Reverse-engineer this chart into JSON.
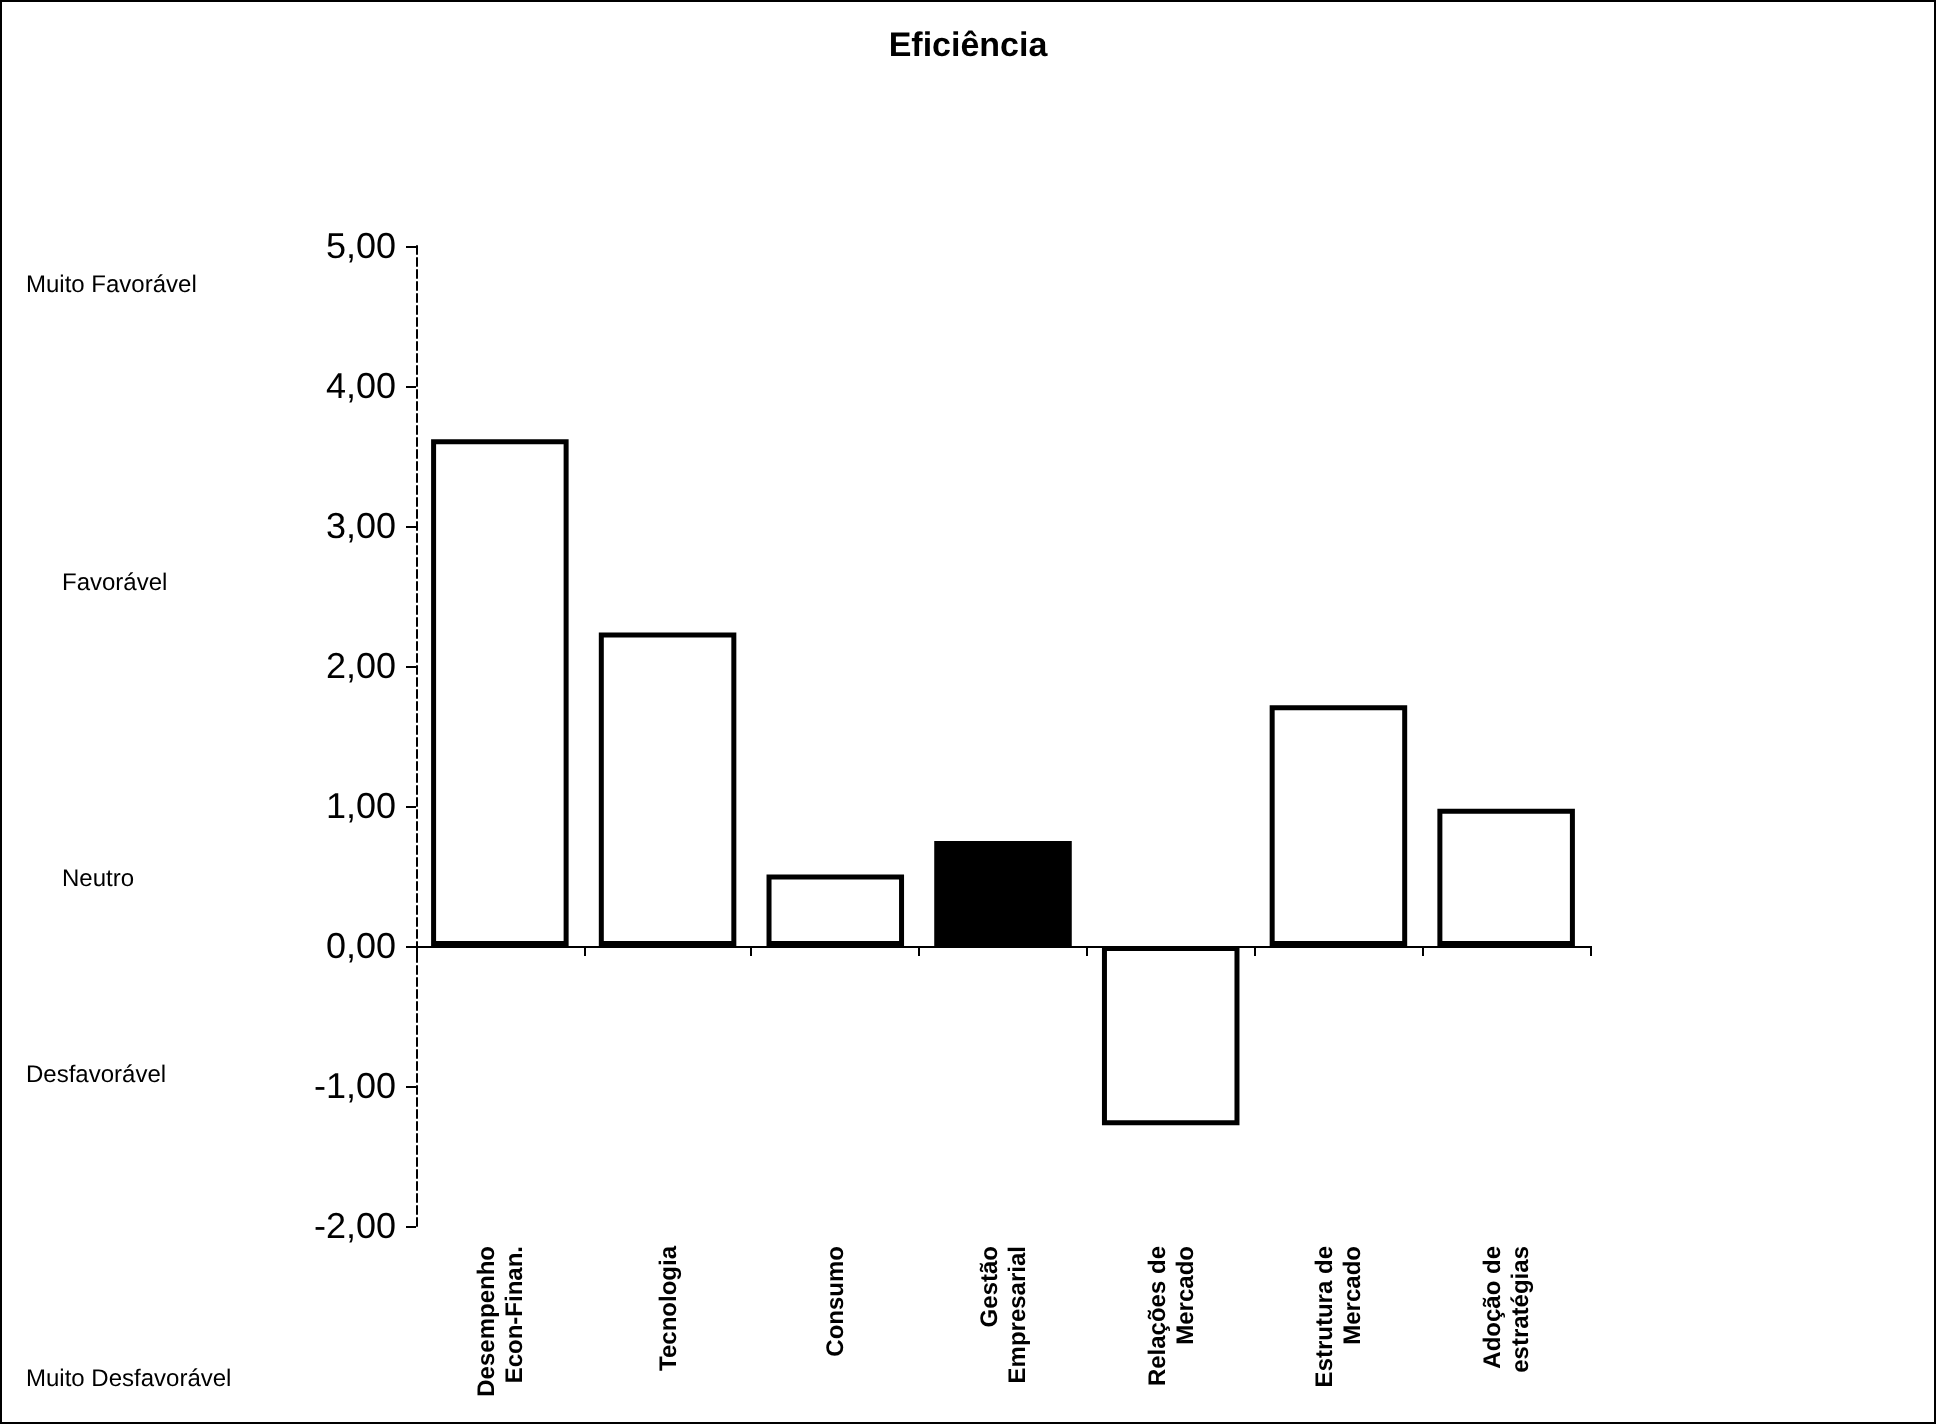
{
  "chart_data": {
    "type": "bar",
    "title": "Eficiência",
    "categories": [
      "Desempenho\nEcon-Finan.",
      "Tecnologia",
      "Consumo",
      "Gestão\nEmpresarial",
      "Relações de\nMercado",
      "Estrutura de\nMercado",
      "Adoção de\nestratégias"
    ],
    "values": [
      3.62,
      2.24,
      0.51,
      0.75,
      -1.28,
      1.72,
      0.98
    ],
    "colors": [
      "#ffffff",
      "#ffffff",
      "#ffffff",
      "#000000",
      "#ffffff",
      "#ffffff",
      "#ffffff"
    ],
    "ylim": [
      -2,
      5
    ],
    "yticks": [
      {
        "value": -2,
        "label": "-2,00"
      },
      {
        "value": -1,
        "label": "-1,00"
      },
      {
        "value": 0,
        "label": "0,00"
      },
      {
        "value": 1,
        "label": "1,00"
      },
      {
        "value": 2,
        "label": "2,00"
      },
      {
        "value": 3,
        "label": "3,00"
      },
      {
        "value": 4,
        "label": "4,00"
      },
      {
        "value": 5,
        "label": "5,00"
      }
    ],
    "annotations": [
      "Muito Favorável",
      "Favorável",
      "Neutro",
      "Desfavorável",
      "Muito Desfavorável"
    ]
  }
}
